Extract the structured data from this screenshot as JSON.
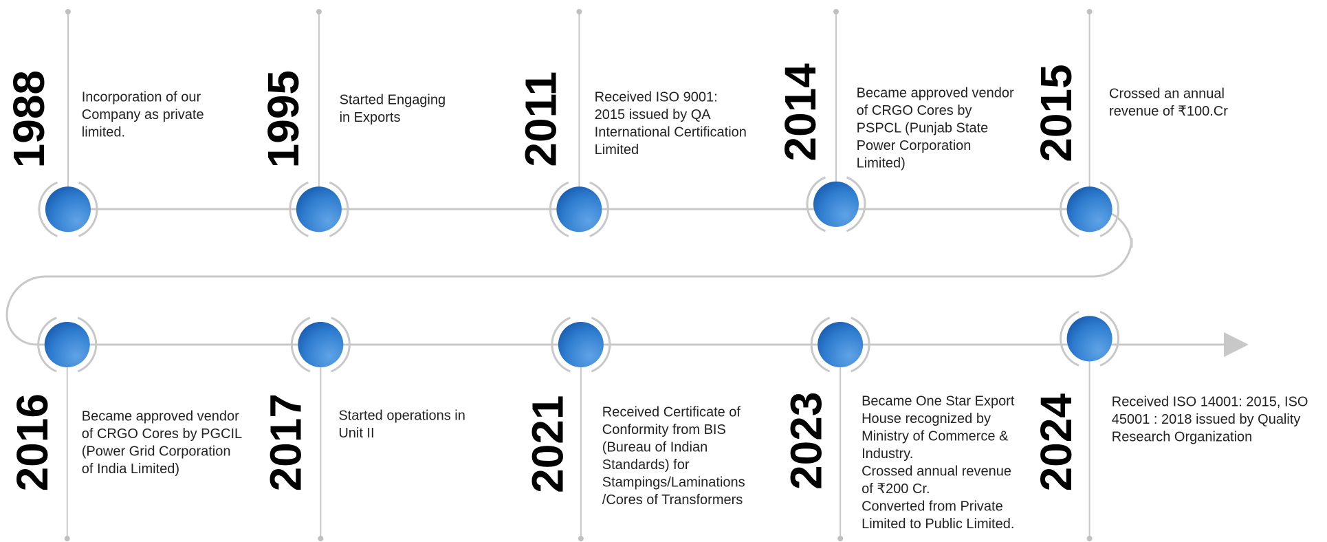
{
  "timeline": {
    "events": [
      {
        "year": "1988",
        "lines": [
          "Incorporation of our",
          "Company as private",
          "limited."
        ]
      },
      {
        "year": "1995",
        "lines": [
          "Started Engaging",
          "in Exports"
        ]
      },
      {
        "year": "2011",
        "lines": [
          "Received ISO 9001:",
          "2015 issued by QA",
          "International Certification",
          "Limited"
        ]
      },
      {
        "year": "2014",
        "lines": [
          "Became approved vendor",
          "of CRGO Cores by",
          "PSPCL (Punjab State",
          "Power Corporation",
          "Limited)"
        ]
      },
      {
        "year": "2015",
        "lines": [
          "Crossed an annual",
          "revenue of ₹100.Cr"
        ]
      },
      {
        "year": "2016",
        "lines": [
          "Became approved vendor",
          "of CRGO Cores by PGCIL",
          "(Power Grid Corporation",
          "of India Limited)"
        ]
      },
      {
        "year": "2017",
        "lines": [
          "Started operations in",
          "Unit II"
        ]
      },
      {
        "year": "2021",
        "lines": [
          "Received Certificate of",
          "Conformity from BIS",
          "(Bureau of Indian",
          "Standards) for",
          "Stampings/Laminations",
          "/Cores of Transformers"
        ]
      },
      {
        "year": "2023",
        "lines": [
          "Became One Star Export",
          "House recognized by",
          "Ministry of Commerce &",
          "Industry.",
          "Crossed annual revenue",
          "of ₹200 Cr.",
          "Converted from Private",
          "Limited to Public Limited."
        ]
      },
      {
        "year": "2024",
        "lines": [
          "Received ISO 14001: 2015, ISO",
          "45001 : 2018 issued by Quality",
          "Research Organization"
        ]
      }
    ]
  }
}
